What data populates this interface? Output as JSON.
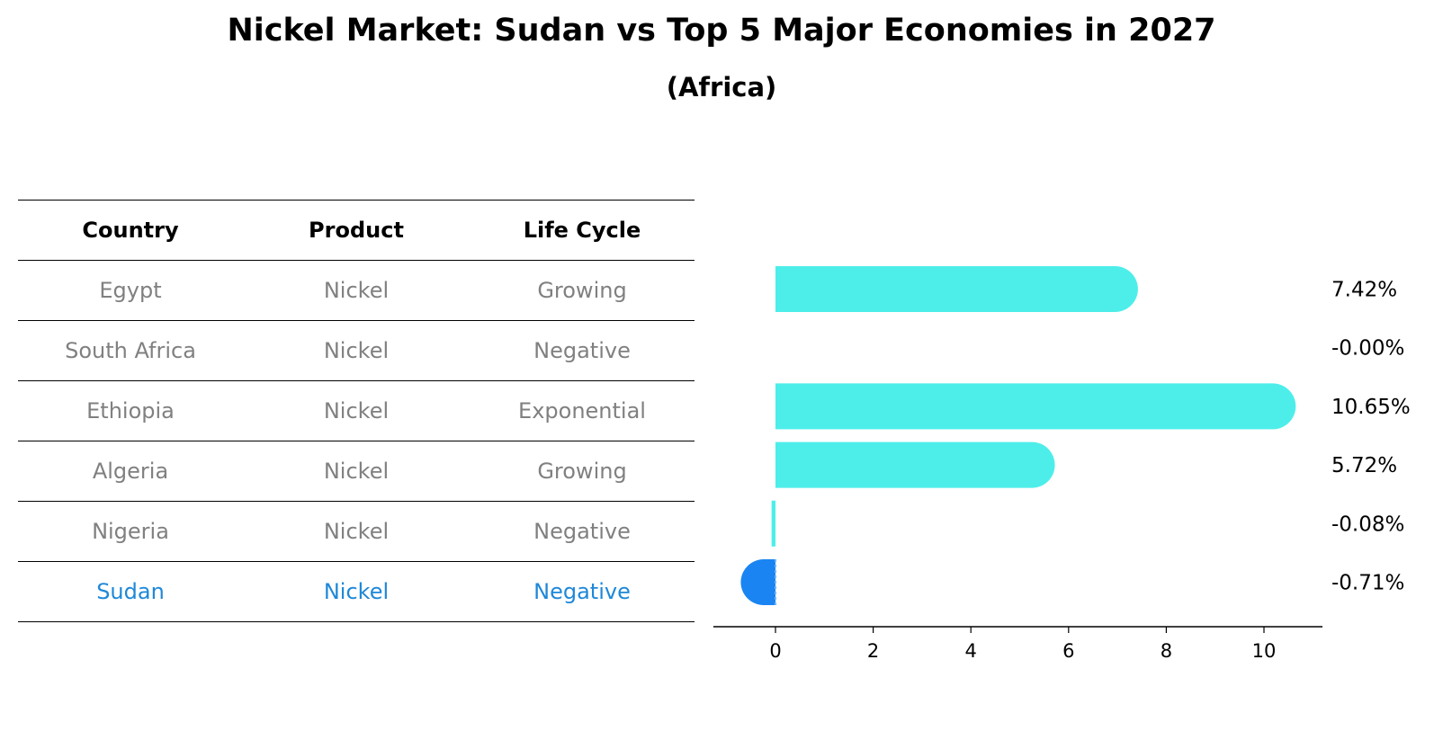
{
  "title": "Nickel Market: Sudan vs Top 5 Major Economies in 2027",
  "subtitle": "(Africa)",
  "table": {
    "headers": [
      "Country",
      "Product",
      "Life Cycle"
    ],
    "rows": [
      [
        "Egypt",
        "Nickel",
        "Growing"
      ],
      [
        "South Africa",
        "Nickel",
        "Negative"
      ],
      [
        "Ethiopia",
        "Nickel",
        "Exponential"
      ],
      [
        "Algeria",
        "Nickel",
        "Growing"
      ],
      [
        "Nigeria",
        "Nickel",
        "Negative"
      ],
      [
        "Sudan",
        "Nickel",
        "Negative"
      ]
    ],
    "highlight_row": 5
  },
  "colors": {
    "bar": "#4deeea",
    "highlight": "#1a85f2",
    "row_text": "#808080",
    "highlight_text": "#1e88d8"
  },
  "chart_data": {
    "type": "bar",
    "orientation": "horizontal",
    "categories": [
      "Egypt",
      "South Africa",
      "Ethiopia",
      "Algeria",
      "Nigeria",
      "Sudan"
    ],
    "values": [
      7.42,
      -0.0,
      10.65,
      5.72,
      -0.08,
      -0.71
    ],
    "data_labels": [
      "7.42%",
      "-0.00%",
      "10.65%",
      "5.72%",
      "-0.08%",
      "-0.71%"
    ],
    "xticks": [
      0,
      2,
      4,
      6,
      8,
      10
    ],
    "xlim": [
      -1.3,
      11.2
    ],
    "highlight_category": "Sudan",
    "grid": false
  }
}
